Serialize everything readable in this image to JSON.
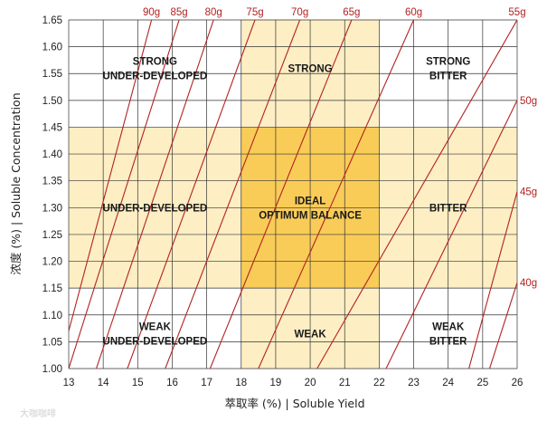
{
  "chart_data": {
    "type": "line",
    "title": "",
    "xlabel": "萃取率 (%)  |  Soluble Yield",
    "ylabel": "浓度 (%)  |  Soluble Concentration",
    "xlim": [
      13,
      26
    ],
    "ylim": [
      1.0,
      1.65
    ],
    "x_ticks": [
      13,
      14,
      15,
      16,
      17,
      18,
      19,
      20,
      21,
      22,
      23,
      24,
      25,
      26
    ],
    "y_ticks": [
      1.0,
      1.05,
      1.1,
      1.15,
      1.2,
      1.25,
      1.3,
      1.35,
      1.4,
      1.45,
      1.5,
      1.55,
      1.6,
      1.65
    ],
    "y_tick_labels": [
      "1.00",
      "1.05",
      "1.10",
      "1.15",
      "1.20",
      "1.25",
      "1.30",
      "1.35",
      "1.40",
      "1.45",
      "1.50",
      "1.55",
      "1.60",
      "1.65"
    ],
    "grid": true,
    "zone_colors": {
      "light": "#fdeec4",
      "ideal": "#f9cc58",
      "grid": "#333333",
      "brew_ratio_line": "#b22222"
    },
    "bands": {
      "ideal_x": [
        18,
        22
      ],
      "ideal_y": [
        1.15,
        1.45
      ]
    },
    "zones": [
      {
        "lines": [
          "STRONG",
          "UNDER-DEVELOPED"
        ],
        "x": 15.5,
        "y": 1.56
      },
      {
        "lines": [
          "STRONG"
        ],
        "x": 20,
        "y": 1.56
      },
      {
        "lines": [
          "STRONG",
          "BITTER"
        ],
        "x": 24,
        "y": 1.56
      },
      {
        "lines": [
          "UNDER-DEVELOPED"
        ],
        "x": 15.5,
        "y": 1.3
      },
      {
        "lines": [
          "IDEAL",
          "OPTIMUM BALANCE"
        ],
        "x": 20,
        "y": 1.3
      },
      {
        "lines": [
          "BITTER"
        ],
        "x": 24,
        "y": 1.3
      },
      {
        "lines": [
          "WEAK",
          "UNDER-DEVELOPED"
        ],
        "x": 15.5,
        "y": 1.065
      },
      {
        "lines": [
          "WEAK"
        ],
        "x": 20,
        "y": 1.065
      },
      {
        "lines": [
          "WEAK",
          "BITTER"
        ],
        "x": 24,
        "y": 1.065
      }
    ],
    "series": [
      {
        "name": "90g",
        "points": [
          [
            13.0,
            1.07
          ],
          [
            15.4,
            1.65
          ]
        ]
      },
      {
        "name": "85g",
        "points": [
          [
            13.0,
            1.0
          ],
          [
            16.2,
            1.65
          ]
        ]
      },
      {
        "name": "80g",
        "points": [
          [
            13.8,
            1.0
          ],
          [
            17.2,
            1.65
          ]
        ]
      },
      {
        "name": "75g",
        "points": [
          [
            14.7,
            1.0
          ],
          [
            18.4,
            1.65
          ]
        ]
      },
      {
        "name": "70g",
        "points": [
          [
            15.8,
            1.0
          ],
          [
            19.7,
            1.65
          ]
        ]
      },
      {
        "name": "65g",
        "points": [
          [
            17.1,
            1.0
          ],
          [
            21.2,
            1.65
          ]
        ]
      },
      {
        "name": "60g",
        "points": [
          [
            18.5,
            1.0
          ],
          [
            23.0,
            1.65
          ]
        ]
      },
      {
        "name": "55g",
        "points": [
          [
            20.2,
            1.0
          ],
          [
            26.0,
            1.65
          ]
        ]
      },
      {
        "name": "50g",
        "points": [
          [
            22.2,
            1.0
          ],
          [
            26.0,
            1.5
          ]
        ]
      },
      {
        "name": "45g",
        "points": [
          [
            24.6,
            1.0
          ],
          [
            26.0,
            1.33
          ]
        ]
      },
      {
        "name": "40g",
        "points": [
          [
            25.2,
            1.0
          ],
          [
            26.0,
            1.16
          ]
        ]
      }
    ]
  },
  "watermark": "大咖咖啡"
}
